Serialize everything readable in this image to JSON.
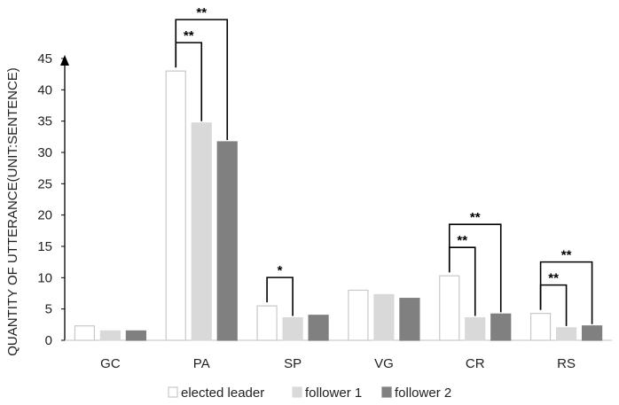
{
  "chart_data": {
    "type": "bar",
    "title": "",
    "xlabel": "",
    "ylabel": "QUANTITY OF UTTERANCE(UNIT:SENTENCE)",
    "categories": [
      "GC",
      "PA",
      "SP",
      "VG",
      "CR",
      "RS"
    ],
    "ylim": [
      0,
      45
    ],
    "yticks": [
      0,
      5,
      10,
      15,
      20,
      25,
      30,
      35,
      40,
      45
    ],
    "grid": false,
    "legend_position": "bottom",
    "series": [
      {
        "name": "elected leader",
        "color": "#ffffff",
        "stroke": "#c8c8c8",
        "values": [
          2.3,
          43,
          5.5,
          8,
          10.3,
          4.3
        ]
      },
      {
        "name": "follower 1",
        "color": "#d9d9d9",
        "stroke": "#d9d9d9",
        "values": [
          1.5,
          34.7,
          3.6,
          7.3,
          3.6,
          2.0
        ]
      },
      {
        "name": "follower 2",
        "color": "#808080",
        "stroke": "#808080",
        "values": [
          1.5,
          31.7,
          4.0,
          6.7,
          4.2,
          2.3
        ]
      }
    ],
    "annotations": [
      {
        "category": "PA",
        "from_series": 0,
        "to_series": 1,
        "label": "**",
        "level": 1
      },
      {
        "category": "PA",
        "from_series": 0,
        "to_series": 2,
        "label": "**",
        "level": 2
      },
      {
        "category": "SP",
        "from_series": 0,
        "to_series": 1,
        "label": "*",
        "level": 1
      },
      {
        "category": "CR",
        "from_series": 0,
        "to_series": 1,
        "label": "**",
        "level": 1
      },
      {
        "category": "CR",
        "from_series": 0,
        "to_series": 2,
        "label": "**",
        "level": 2
      },
      {
        "category": "RS",
        "from_series": 0,
        "to_series": 1,
        "label": "**",
        "level": 1
      },
      {
        "category": "RS",
        "from_series": 0,
        "to_series": 2,
        "label": "**",
        "level": 2
      }
    ]
  }
}
